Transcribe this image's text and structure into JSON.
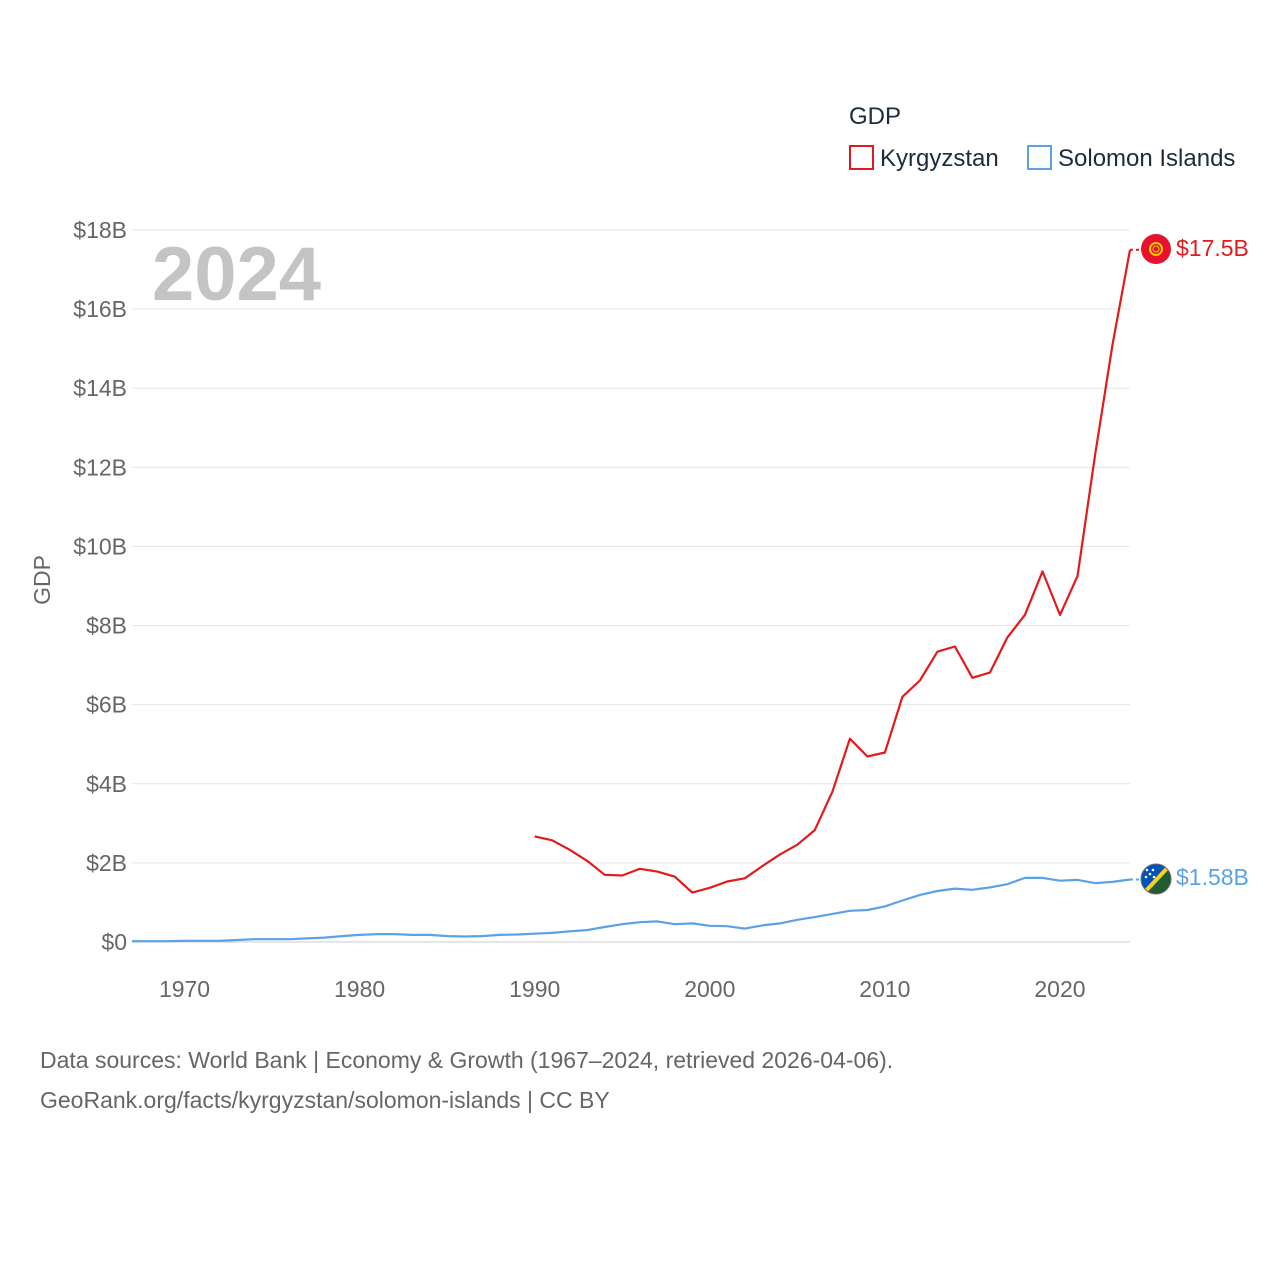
{
  "chart_data": {
    "type": "line",
    "year_label": "2024",
    "ylabel": "GDP",
    "ylim": [
      0,
      18
    ],
    "y_unit": "billion USD",
    "y_ticks": [
      {
        "value": 0,
        "label": "$0"
      },
      {
        "value": 2,
        "label": "$2B"
      },
      {
        "value": 4,
        "label": "$4B"
      },
      {
        "value": 6,
        "label": "$6B"
      },
      {
        "value": 8,
        "label": "$8B"
      },
      {
        "value": 10,
        "label": "$10B"
      },
      {
        "value": 12,
        "label": "$12B"
      },
      {
        "value": 14,
        "label": "$14B"
      },
      {
        "value": 16,
        "label": "$16B"
      },
      {
        "value": 18,
        "label": "$18B"
      }
    ],
    "xlim": [
      1967,
      2024
    ],
    "x_ticks": [
      {
        "value": 1970,
        "label": "1970"
      },
      {
        "value": 1980,
        "label": "1980"
      },
      {
        "value": 1990,
        "label": "1990"
      },
      {
        "value": 2000,
        "label": "2000"
      },
      {
        "value": 2010,
        "label": "2010"
      },
      {
        "value": 2020,
        "label": "2020"
      }
    ],
    "legend": {
      "title": "GDP",
      "position": "top-right"
    },
    "series": [
      {
        "name": "Kyrgyzstan",
        "color": "#e31a1c",
        "end_label": "$17.5B",
        "x": [
          1990,
          1991,
          1992,
          1993,
          1994,
          1995,
          1996,
          1997,
          1998,
          1999,
          2000,
          2001,
          2002,
          2003,
          2004,
          2005,
          2006,
          2007,
          2008,
          2009,
          2010,
          2011,
          2012,
          2013,
          2014,
          2015,
          2016,
          2017,
          2018,
          2019,
          2020,
          2021,
          2022,
          2023,
          2024
        ],
        "values": [
          2.67,
          2.57,
          2.33,
          2.05,
          1.7,
          1.68,
          1.85,
          1.78,
          1.65,
          1.25,
          1.37,
          1.53,
          1.61,
          1.92,
          2.21,
          2.46,
          2.83,
          3.8,
          5.14,
          4.69,
          4.79,
          6.2,
          6.61,
          7.34,
          7.47,
          6.68,
          6.81,
          7.7,
          8.27,
          9.37,
          8.27,
          9.25,
          12.3,
          15.1,
          17.5
        ]
      },
      {
        "name": "Solomon Islands",
        "color": "#5aa2e8",
        "end_label": "$1.58B",
        "x": [
          1967,
          1968,
          1969,
          1970,
          1971,
          1972,
          1973,
          1974,
          1975,
          1976,
          1977,
          1978,
          1979,
          1980,
          1981,
          1982,
          1983,
          1984,
          1985,
          1986,
          1987,
          1988,
          1989,
          1990,
          1991,
          1992,
          1993,
          1994,
          1995,
          1996,
          1997,
          1998,
          1999,
          2000,
          2001,
          2002,
          2003,
          2004,
          2005,
          2006,
          2007,
          2008,
          2009,
          2010,
          2011,
          2012,
          2013,
          2014,
          2015,
          2016,
          2017,
          2018,
          2019,
          2020,
          2021,
          2022,
          2023,
          2024
        ],
        "values": [
          0.02,
          0.02,
          0.02,
          0.03,
          0.03,
          0.03,
          0.05,
          0.07,
          0.07,
          0.07,
          0.09,
          0.11,
          0.15,
          0.18,
          0.2,
          0.2,
          0.18,
          0.18,
          0.15,
          0.14,
          0.15,
          0.18,
          0.19,
          0.21,
          0.23,
          0.27,
          0.3,
          0.38,
          0.45,
          0.5,
          0.52,
          0.45,
          0.47,
          0.41,
          0.4,
          0.34,
          0.42,
          0.47,
          0.56,
          0.63,
          0.71,
          0.79,
          0.81,
          0.9,
          1.05,
          1.19,
          1.29,
          1.35,
          1.32,
          1.38,
          1.46,
          1.62,
          1.62,
          1.55,
          1.57,
          1.49,
          1.52,
          1.58
        ]
      }
    ]
  },
  "footer": {
    "line1": "Data sources: World Bank | Economy & Growth (1967–2024, retrieved 2026-04-06).",
    "line2": "GeoRank.org/facts/kyrgyzstan/solomon-islands | CC BY"
  }
}
